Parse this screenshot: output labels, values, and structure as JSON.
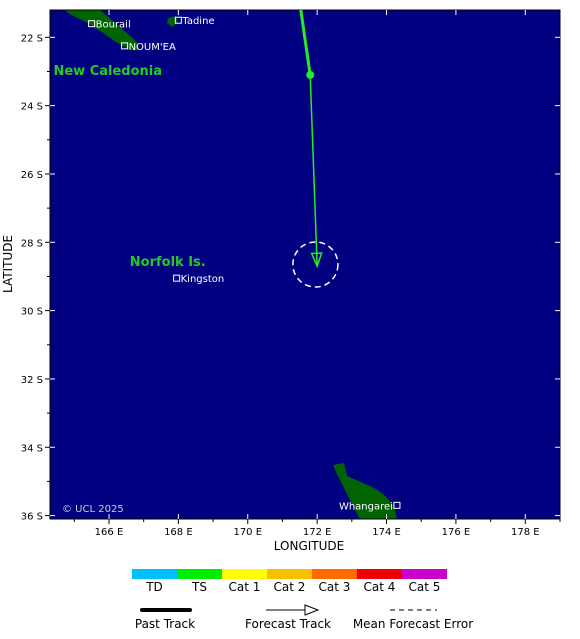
{
  "map": {
    "lon_range": [
      164.3,
      179.0
    ],
    "lat_range": [
      -36.1,
      -21.2
    ],
    "lon_ticks": [
      166,
      168,
      170,
      172,
      174,
      176,
      178
    ],
    "lat_ticks": [
      -22,
      -24,
      -26,
      -28,
      -30,
      -32,
      -34,
      -36
    ],
    "xlabel": "LONGITUDE",
    "ylabel": "LATITUDE",
    "credit": "© UCL 2025",
    "ocean_color": "#000080",
    "land_color": "#006400",
    "regions": [
      {
        "name": "New Caledonia",
        "lon": 164.4,
        "lat": -23.1
      },
      {
        "name": "Norfolk Is.",
        "lon": 166.6,
        "lat": -28.7
      }
    ],
    "cities": [
      {
        "name": "Bourail",
        "lon": 165.5,
        "lat": -21.6
      },
      {
        "name": "Tadine",
        "lon": 168.0,
        "lat": -21.5
      },
      {
        "name": "NOUM'EA",
        "lon": 166.45,
        "lat": -22.25
      },
      {
        "name": "Kingston",
        "lon": 167.95,
        "lat": -29.05
      },
      {
        "name": "Whangarei",
        "lon": 174.3,
        "lat": -35.7
      }
    ],
    "track": {
      "past": [
        [
          171.5,
          -21.0
        ],
        [
          171.8,
          -23.1
        ]
      ],
      "forecast": [
        [
          171.8,
          -23.1
        ],
        [
          172.0,
          -28.7
        ]
      ],
      "color": "#22ee22",
      "error_center": [
        171.95,
        -28.65
      ],
      "error_radius_deg": 0.65
    }
  },
  "legend": {
    "categories": [
      {
        "label": "TD",
        "color": "#00bfff"
      },
      {
        "label": "TS",
        "color": "#00ee00"
      },
      {
        "label": "Cat 1",
        "color": "#ffff00"
      },
      {
        "label": "Cat 2",
        "color": "#f7c000"
      },
      {
        "label": "Cat 3",
        "color": "#ff6a00"
      },
      {
        "label": "Cat 4",
        "color": "#ee0000"
      },
      {
        "label": "Cat 5",
        "color": "#cc00cc"
      }
    ],
    "past_track": "Past Track",
    "forecast_track": "Forecast Track",
    "mean_error": "Mean Forecast Error"
  }
}
